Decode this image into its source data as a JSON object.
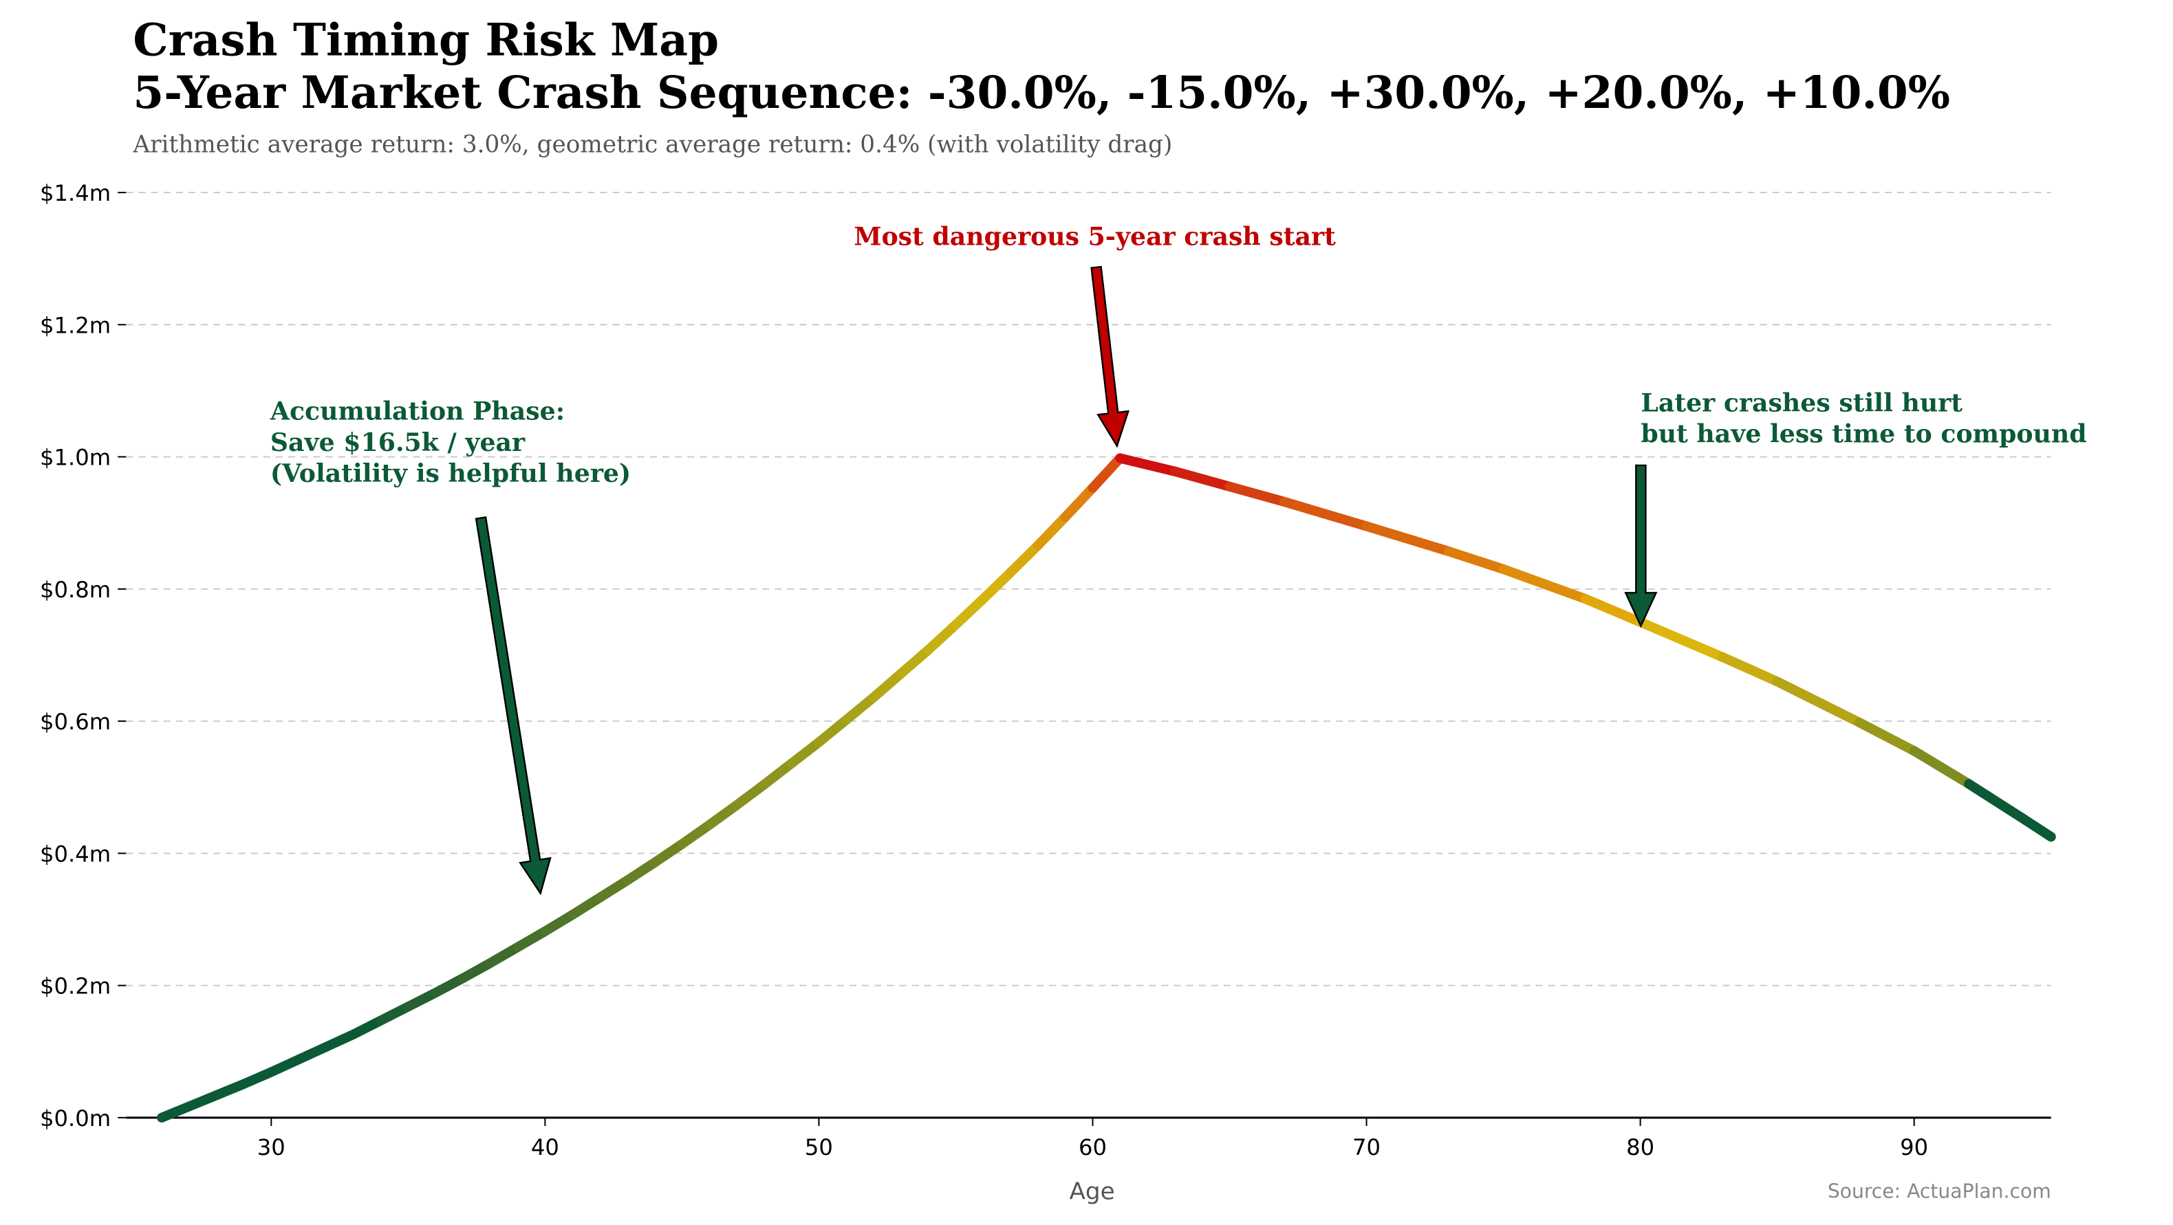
{
  "chart_data": {
    "type": "line",
    "title": "Crash Timing Risk Map",
    "subtitle": "5-Year Market Crash Sequence: -30.0%, -15.0%, +30.0%, +20.0%, +10.0%",
    "description": "Arithmetic average return: 3.0%, geometric average return: 0.4% (with volatility drag)",
    "x_label": "Age",
    "source": "Source: ActuaPlan.com",
    "x": [
      26,
      27,
      28,
      29,
      30,
      31,
      32,
      33,
      34,
      35,
      36,
      37,
      38,
      39,
      40,
      41,
      42,
      43,
      44,
      45,
      46,
      47,
      48,
      49,
      50,
      51,
      52,
      53,
      54,
      55,
      56,
      57,
      58,
      59,
      60,
      61,
      63,
      65,
      67,
      70,
      73,
      75,
      78,
      80,
      83,
      85,
      88,
      90,
      92,
      94,
      95
    ],
    "series": [
      {
        "values": [
          0,
          0.017,
          0.034,
          0.051,
          0.069,
          0.088,
          0.107,
          0.126,
          0.147,
          0.168,
          0.189,
          0.211,
          0.234,
          0.258,
          0.282,
          0.307,
          0.333,
          0.359,
          0.386,
          0.414,
          0.443,
          0.473,
          0.504,
          0.536,
          0.568,
          0.602,
          0.636,
          0.672,
          0.708,
          0.746,
          0.785,
          0.825,
          0.866,
          0.909,
          0.953,
          0.998,
          0.978,
          0.955,
          0.932,
          0.895,
          0.857,
          0.83,
          0.785,
          0.75,
          0.697,
          0.66,
          0.598,
          0.555,
          0.505,
          0.452,
          0.425
        ],
        "colors": [
          "#0b5a35",
          "#0b5a35",
          "#0b5a35",
          "#0b5a35",
          "#0b5a35",
          "#0b5a35",
          "#0b5a35",
          "#0b5a35",
          "#1a5e33",
          "#265f31",
          "#2e6230",
          "#36672e",
          "#3e6b2d",
          "#46702b",
          "#4e742a",
          "#567828",
          "#5e7c27",
          "#668025",
          "#6e8424",
          "#768822",
          "#7e8c21",
          "#869020",
          "#8e941e",
          "#969a1c",
          "#9e9e1b",
          "#a8a218",
          "#b2a816",
          "#bcac14",
          "#c6b012",
          "#d0b410",
          "#d6b40e",
          "#d8aa0e",
          "#da9a0e",
          "#dc820e",
          "#d85010",
          "#d01010",
          "#d02010",
          "#d44010",
          "#d85810",
          "#db680c",
          "#dd7c0a",
          "#de8e0a",
          "#e0a80a",
          "#dcb60c",
          "#c8ac12",
          "#b4a416",
          "#98981c",
          "#7e8c21",
          "#0b5a35",
          "#0b5a35",
          "#0b5a35"
        ]
      }
    ],
    "xlim": [
      24.7,
      95
    ],
    "ylim": [
      0,
      1.4
    ],
    "xticks": [
      30,
      40,
      50,
      60,
      70,
      80,
      90
    ],
    "yticks": [
      {
        "value": 0,
        "label": "$0.0m"
      },
      {
        "value": 0.2,
        "label": "$0.2m"
      },
      {
        "value": 0.4,
        "label": "$0.4m"
      },
      {
        "value": 0.6,
        "label": "$0.6m"
      },
      {
        "value": 0.8,
        "label": "$0.8m"
      },
      {
        "value": 1.0,
        "label": "$1.0m"
      },
      {
        "value": 1.2,
        "label": "$1.2m"
      },
      {
        "value": 1.4,
        "label": "$1.4m"
      }
    ],
    "grid": true,
    "annotations": [
      {
        "lines": [
          "Accumulation Phase:",
          "Save $16.5k / year",
          "(Volatility is helpful here)"
        ],
        "color": "#0b5a35"
      },
      {
        "lines": [
          "Most dangerous 5-year crash start"
        ],
        "color": "#c00000"
      },
      {
        "lines": [
          "Later crashes still hurt",
          "but have less time to compound"
        ],
        "color": "#0b5a35"
      }
    ]
  }
}
